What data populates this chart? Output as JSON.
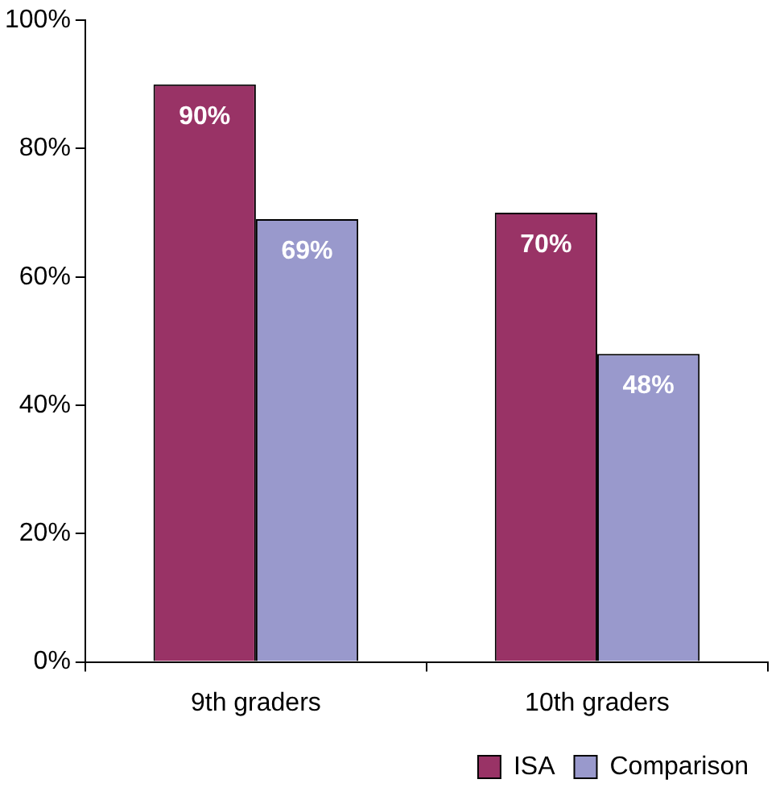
{
  "chart_data": {
    "type": "bar",
    "categories": [
      "9th graders",
      "10th graders"
    ],
    "series": [
      {
        "name": "ISA",
        "color": "#993366",
        "values": [
          90,
          70
        ],
        "value_labels": [
          "90%",
          "70%"
        ]
      },
      {
        "name": "Comparison",
        "color": "#9999cc",
        "values": [
          69,
          48
        ],
        "value_labels": [
          "69%",
          "48%"
        ]
      }
    ],
    "ylim": [
      0,
      100
    ],
    "yticks": [
      {
        "value": 0,
        "label": "0%"
      },
      {
        "value": 20,
        "label": "20%"
      },
      {
        "value": 40,
        "label": "40%"
      },
      {
        "value": 60,
        "label": "60%"
      },
      {
        "value": 80,
        "label": "80%"
      },
      {
        "value": 100,
        "label": "100%"
      }
    ],
    "grid": false,
    "legend": "bottom right"
  }
}
